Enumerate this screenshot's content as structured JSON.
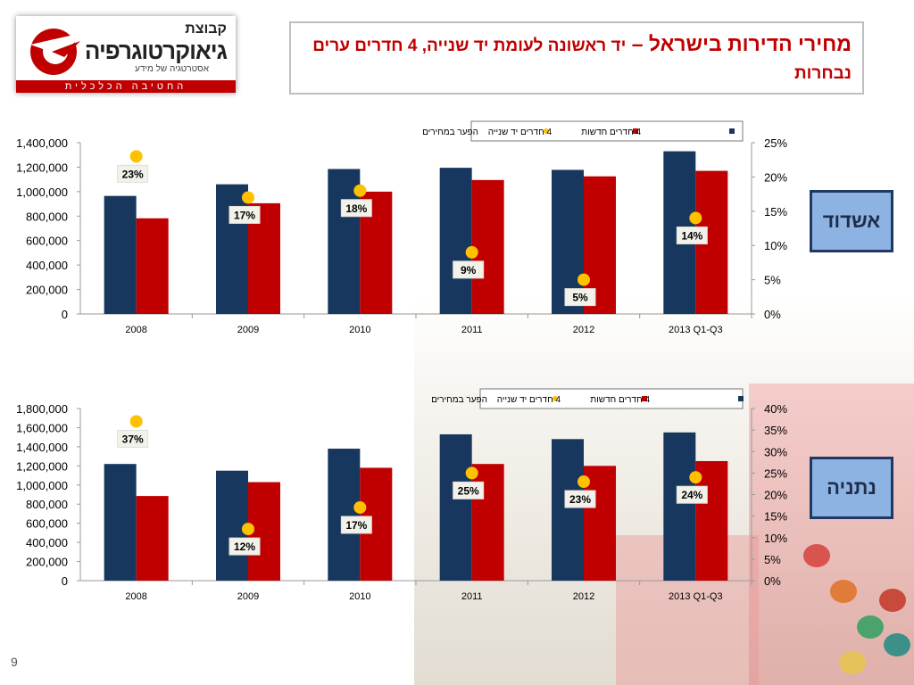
{
  "logo": {
    "line1": "קבוצת",
    "line2": "גיאוקרטוגרפיה",
    "tagline": "אסטרטגיה של מידע",
    "band": "החטיבה הכלכלית"
  },
  "title": {
    "main": "מחירי הדירות בישראל – ",
    "sub": "יד ראשונה לעומת יד שנייה, 4 חדרים ערים נבחרות"
  },
  "colors": {
    "new": "#17375e",
    "second": "#c00000",
    "gap": "#ffc000",
    "accent": "#c00000"
  },
  "page_number": "9",
  "chart_data": [
    {
      "type": "bar",
      "city": "אשדוד",
      "categories": [
        "2008",
        "2009",
        "2010",
        "2011",
        "2012",
        "2013 Q1-Q3"
      ],
      "series": [
        {
          "name": "4 חדרים חדשות",
          "values": [
            965000,
            1060000,
            1185000,
            1195000,
            1178000,
            1330000
          ]
        },
        {
          "name": "4 חדרים יד שנייה",
          "values": [
            782000,
            905000,
            1000000,
            1095000,
            1125000,
            1170000
          ]
        },
        {
          "name": "הפער במחירים",
          "axis": "right",
          "values": [
            23,
            17,
            18,
            9,
            5,
            14
          ],
          "labels": [
            "23%",
            "17%",
            "18%",
            "9%",
            "5%",
            "14%"
          ]
        }
      ],
      "y_left": {
        "min": 0,
        "max": 1400000,
        "step": 200000,
        "tick_labels": [
          "0",
          "200,000",
          "400,000",
          "600,000",
          "800,000",
          "1,000,000",
          "1,200,000",
          "1,400,000"
        ]
      },
      "y_right": {
        "min": 0,
        "max": 25,
        "step": 5,
        "tick_labels": [
          "0%",
          "5%",
          "10%",
          "15%",
          "20%",
          "25%"
        ]
      },
      "legend": "top-right"
    },
    {
      "type": "bar",
      "city": "נתניה",
      "categories": [
        "2008",
        "2009",
        "2010",
        "2011",
        "2012",
        "2013 Q1-Q3"
      ],
      "series": [
        {
          "name": "4 חדרים חדשות",
          "values": [
            1220000,
            1150000,
            1380000,
            1530000,
            1480000,
            1550000
          ]
        },
        {
          "name": "4 חדרים יד שנייה",
          "values": [
            885000,
            1030000,
            1180000,
            1220000,
            1200000,
            1250000
          ]
        },
        {
          "name": "הפער במחירים",
          "axis": "right",
          "values": [
            37,
            12,
            17,
            25,
            23,
            24
          ],
          "labels": [
            "37%",
            "12%",
            "17%",
            "25%",
            "23%",
            "24%"
          ]
        }
      ],
      "y_left": {
        "min": 0,
        "max": 1800000,
        "step": 200000,
        "tick_labels": [
          "0",
          "200,000",
          "400,000",
          "600,000",
          "800,000",
          "1,000,000",
          "1,200,000",
          "1,400,000",
          "1,600,000",
          "1,800,000"
        ]
      },
      "y_right": {
        "min": 0,
        "max": 40,
        "step": 5,
        "tick_labels": [
          "0%",
          "5%",
          "10%",
          "15%",
          "20%",
          "25%",
          "30%",
          "35%",
          "40%"
        ]
      },
      "legend": "top-right"
    }
  ]
}
